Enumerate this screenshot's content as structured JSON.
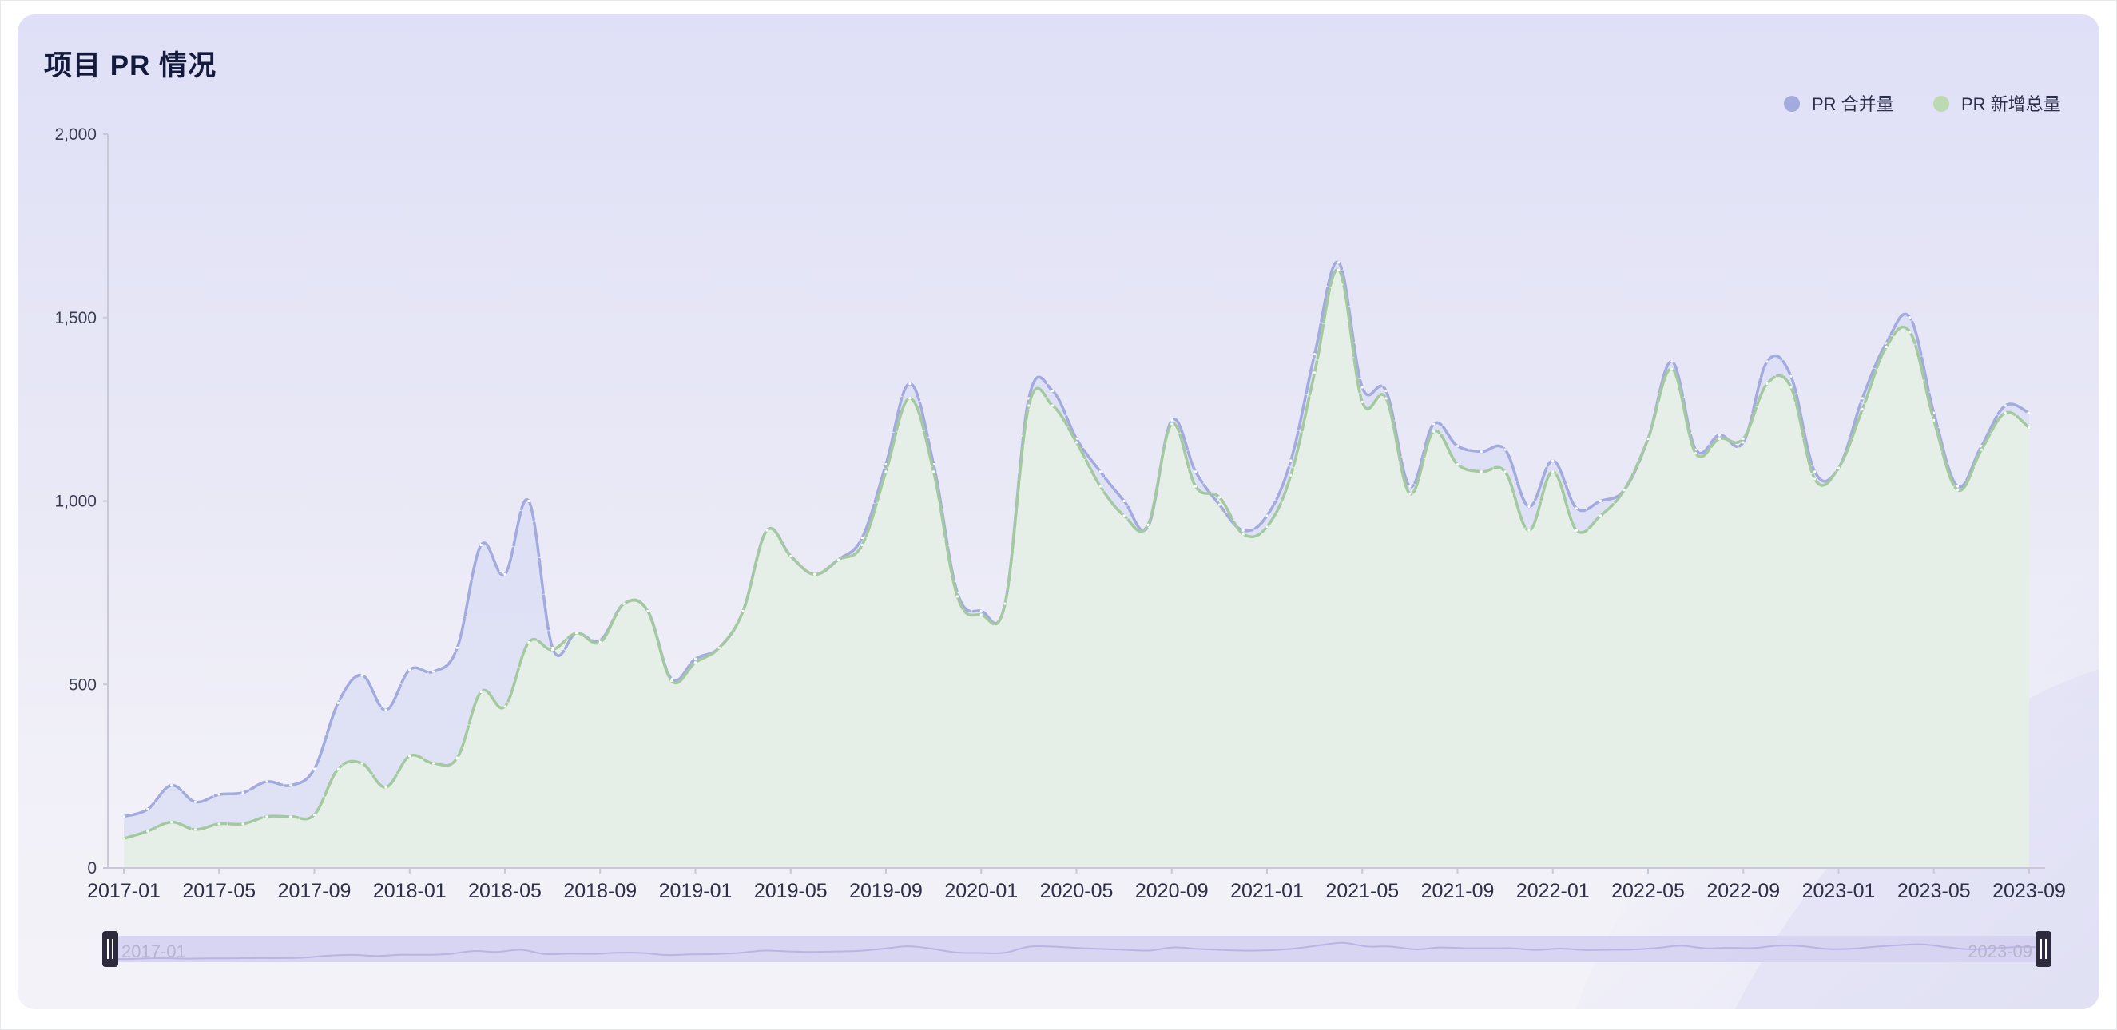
{
  "header": {
    "title": "项目 PR 情况"
  },
  "legend": {
    "placement": "top-right",
    "items": [
      {
        "label": "PR 合并量",
        "color": "#a3aadd"
      },
      {
        "label": "PR 新增总量",
        "color": "#bcd9b1"
      }
    ]
  },
  "colors": {
    "merged_line": "#a3aadd",
    "added_line": "#a4c9a0",
    "merged_area": "#dcdff4",
    "added_area": "#e6efe6",
    "axis": "#c8c8d6",
    "slider_handle": "#2e2a3e",
    "slider_fill": "#d4d1f1"
  },
  "chart_data": {
    "type": "area",
    "title": "项目 PR 情况",
    "xlabel": "",
    "ylabel": "",
    "ylim": [
      0,
      2000
    ],
    "y_ticks": [
      "0",
      "500",
      "1,000",
      "1,500",
      "2,000"
    ],
    "y_tick_values": [
      0,
      500,
      1000,
      1500,
      2000
    ],
    "x_tick_labels": [
      "2017-01",
      "2017-05",
      "2017-09",
      "2018-01",
      "2018-05",
      "2018-09",
      "2019-01",
      "2019-05",
      "2019-09",
      "2020-01",
      "2020-05",
      "2020-09",
      "2021-01",
      "2021-05",
      "2021-09",
      "2022-01",
      "2022-05",
      "2022-09",
      "2023-01",
      "2023-05",
      "2023-09"
    ],
    "grid": false,
    "x": [
      "2017-01",
      "2017-02",
      "2017-03",
      "2017-04",
      "2017-05",
      "2017-06",
      "2017-07",
      "2017-08",
      "2017-09",
      "2017-10",
      "2017-11",
      "2017-12",
      "2018-01",
      "2018-02",
      "2018-03",
      "2018-04",
      "2018-05",
      "2018-06",
      "2018-07",
      "2018-08",
      "2018-09",
      "2018-10",
      "2018-11",
      "2018-12",
      "2019-01",
      "2019-02",
      "2019-03",
      "2019-04",
      "2019-05",
      "2019-06",
      "2019-07",
      "2019-08",
      "2019-09",
      "2019-10",
      "2019-11",
      "2019-12",
      "2020-01",
      "2020-02",
      "2020-03",
      "2020-04",
      "2020-05",
      "2020-06",
      "2020-07",
      "2020-08",
      "2020-09",
      "2020-10",
      "2020-11",
      "2020-12",
      "2021-01",
      "2021-02",
      "2021-03",
      "2021-04",
      "2021-05",
      "2021-06",
      "2021-07",
      "2021-08",
      "2021-09",
      "2021-10",
      "2021-11",
      "2021-12",
      "2022-01",
      "2022-02",
      "2022-03",
      "2022-04",
      "2022-05",
      "2022-06",
      "2022-07",
      "2022-08",
      "2022-09",
      "2022-10",
      "2022-11",
      "2022-12",
      "2023-01",
      "2023-02",
      "2023-03",
      "2023-04",
      "2023-05",
      "2023-06",
      "2023-07",
      "2023-08",
      "2023-09"
    ],
    "series": [
      {
        "name": "PR 合并量",
        "values": [
          140,
          160,
          225,
          180,
          200,
          205,
          235,
          225,
          270,
          450,
          525,
          430,
          540,
          535,
          600,
          880,
          800,
          1000,
          600,
          640,
          620,
          720,
          700,
          515,
          570,
          600,
          700,
          920,
          850,
          800,
          840,
          900,
          1100,
          1320,
          1100,
          750,
          700,
          720,
          1280,
          1300,
          1170,
          1080,
          1000,
          930,
          1220,
          1080,
          990,
          920,
          960,
          1110,
          1400,
          1650,
          1310,
          1300,
          1040,
          1210,
          1150,
          1135,
          1140,
          985,
          1110,
          980,
          1000,
          1030,
          1170,
          1380,
          1140,
          1180,
          1160,
          1380,
          1340,
          1080,
          1090,
          1280,
          1430,
          1500,
          1240,
          1040,
          1150,
          1260,
          1240
        ],
        "color": "#a3aadd"
      },
      {
        "name": "PR 新增总量",
        "values": [
          80,
          100,
          125,
          105,
          120,
          120,
          140,
          140,
          145,
          270,
          285,
          220,
          305,
          285,
          300,
          480,
          440,
          615,
          595,
          640,
          615,
          720,
          700,
          510,
          560,
          600,
          700,
          920,
          850,
          800,
          840,
          880,
          1080,
          1280,
          1080,
          740,
          690,
          720,
          1260,
          1260,
          1160,
          1040,
          960,
          935,
          1210,
          1040,
          1010,
          910,
          930,
          1070,
          1350,
          1630,
          1270,
          1280,
          1020,
          1190,
          1100,
          1080,
          1080,
          920,
          1080,
          920,
          960,
          1030,
          1170,
          1360,
          1130,
          1170,
          1170,
          1320,
          1310,
          1060,
          1090,
          1250,
          1420,
          1460,
          1220,
          1030,
          1140,
          1240,
          1200
        ],
        "color": "#bcd9b1"
      }
    ],
    "data_zoom": {
      "start_label": "2017-01",
      "end_label": "2023-09",
      "range_percent": [
        0,
        100
      ]
    }
  }
}
